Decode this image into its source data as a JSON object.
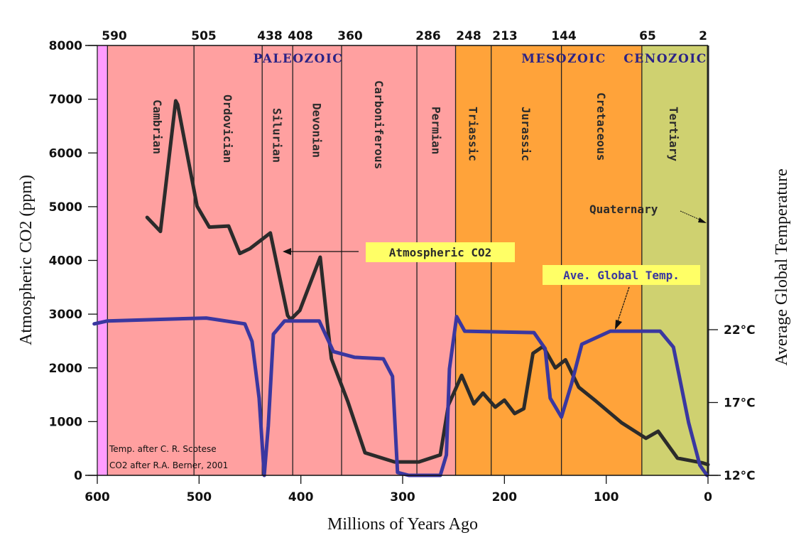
{
  "chart_data": {
    "type": "line",
    "title": "",
    "xlabel": "Millions of Years Ago",
    "ylabel": "Atmospheric CO2 (ppm)",
    "y2label": "Average Global Temperature",
    "xlim": [
      600,
      0
    ],
    "ylim": [
      0,
      8000
    ],
    "y2lim": [
      12,
      22
    ],
    "x_ticks": [
      600,
      500,
      400,
      300,
      200,
      100,
      0
    ],
    "y_ticks": [
      0,
      1000,
      2000,
      3000,
      4000,
      5000,
      6000,
      7000,
      8000
    ],
    "y2_ticks": [
      {
        "value": 12,
        "label": "12°C"
      },
      {
        "value": 17,
        "label": "17°C"
      },
      {
        "value": 22,
        "label": "22°C"
      }
    ],
    "boundary_ticks": [
      590,
      505,
      438,
      408,
      360,
      286,
      248,
      213,
      144,
      65,
      2
    ],
    "eras": [
      {
        "name": "PALEOZOIC",
        "start": 590,
        "end": 248,
        "color": "#ffa0a0"
      },
      {
        "name": "MESOZOIC",
        "start": 248,
        "end": 65,
        "color": "#ffa33a"
      },
      {
        "name": "CENOZOIC",
        "start": 65,
        "end": 0,
        "color": "#cfd170"
      }
    ],
    "pre_cambrian": {
      "start": 600,
      "end": 590,
      "color": "#ff9cff"
    },
    "periods": [
      {
        "name": "Cambrian",
        "start": 590,
        "end": 505
      },
      {
        "name": "Ordovician",
        "start": 505,
        "end": 438
      },
      {
        "name": "Silurian",
        "start": 438,
        "end": 408
      },
      {
        "name": "Devonian",
        "start": 408,
        "end": 360
      },
      {
        "name": "Carboniferous",
        "start": 360,
        "end": 286
      },
      {
        "name": "Permian",
        "start": 286,
        "end": 248
      },
      {
        "name": "Triassic",
        "start": 248,
        "end": 213
      },
      {
        "name": "Jurassic",
        "start": 213,
        "end": 144
      },
      {
        "name": "Cretaceous",
        "start": 144,
        "end": 65
      },
      {
        "name": "Tertiary",
        "start": 65,
        "end": 2
      }
    ],
    "quaternary_label": "Quaternary",
    "series": [
      {
        "name": "Atmospheric CO2",
        "axis": "left",
        "color": "#2b2b2b",
        "points": [
          [
            551,
            4800
          ],
          [
            538,
            4540
          ],
          [
            523,
            6970
          ],
          [
            521,
            6900
          ],
          [
            502,
            5010
          ],
          [
            490,
            4620
          ],
          [
            471,
            4640
          ],
          [
            460,
            4130
          ],
          [
            450,
            4220
          ],
          [
            430,
            4510
          ],
          [
            413,
            2975
          ],
          [
            410,
            2900
          ],
          [
            401,
            3070
          ],
          [
            381,
            4060
          ],
          [
            374,
            2830
          ],
          [
            370,
            2170
          ],
          [
            354,
            1380
          ],
          [
            337,
            420
          ],
          [
            308,
            250
          ],
          [
            284,
            250
          ],
          [
            263,
            380
          ],
          [
            255,
            1310
          ],
          [
            242,
            1860
          ],
          [
            230,
            1330
          ],
          [
            221,
            1530
          ],
          [
            209,
            1270
          ],
          [
            200,
            1400
          ],
          [
            190,
            1150
          ],
          [
            181,
            1240
          ],
          [
            172,
            2270
          ],
          [
            162,
            2400
          ],
          [
            150,
            2000
          ],
          [
            140,
            2150
          ],
          [
            127,
            1640
          ],
          [
            110,
            1380
          ],
          [
            85,
            980
          ],
          [
            61,
            690
          ],
          [
            49,
            820
          ],
          [
            30,
            320
          ],
          [
            5,
            230
          ],
          [
            0,
            200
          ]
        ]
      },
      {
        "name": "Ave. Global Temp.",
        "axis": "right",
        "unit": "°C",
        "color": "#3a37a0",
        "points": [
          [
            603,
            22.4
          ],
          [
            590,
            22.6
          ],
          [
            493,
            22.8
          ],
          [
            455,
            22.4
          ],
          [
            448,
            21.2
          ],
          [
            441,
            17.3
          ],
          [
            436,
            12
          ],
          [
            432,
            15.4
          ],
          [
            427,
            21.7
          ],
          [
            416,
            22.6
          ],
          [
            382,
            22.6
          ],
          [
            368,
            20.5
          ],
          [
            347,
            20.1
          ],
          [
            319,
            20
          ],
          [
            310,
            18.8
          ],
          [
            305,
            12.2
          ],
          [
            294,
            12
          ],
          [
            263,
            12
          ],
          [
            257,
            13.4
          ],
          [
            254,
            19.3
          ],
          [
            247,
            22.9
          ],
          [
            239,
            21.9
          ],
          [
            171,
            21.8
          ],
          [
            160,
            20.7
          ],
          [
            155,
            17.3
          ],
          [
            144,
            16
          ],
          [
            134,
            18.3
          ],
          [
            124,
            21
          ],
          [
            96,
            21.9
          ],
          [
            47,
            21.9
          ],
          [
            34,
            20.8
          ],
          [
            19,
            15.6
          ],
          [
            8,
            12.7
          ],
          [
            1,
            12
          ]
        ]
      }
    ],
    "annotations": [
      {
        "text": "Atmospheric CO2",
        "style": "callout",
        "bg": "#ffff66",
        "text_color": "#2b2b2b"
      },
      {
        "text": "Ave. Global Temp.",
        "style": "callout",
        "bg": "#ffff66",
        "text_color": "#3a37a0"
      },
      {
        "text": "Temp. after C. R. Scotese"
      },
      {
        "text": "CO2 after R.A. Berner, 2001"
      }
    ],
    "grid": false,
    "legend": "none"
  }
}
